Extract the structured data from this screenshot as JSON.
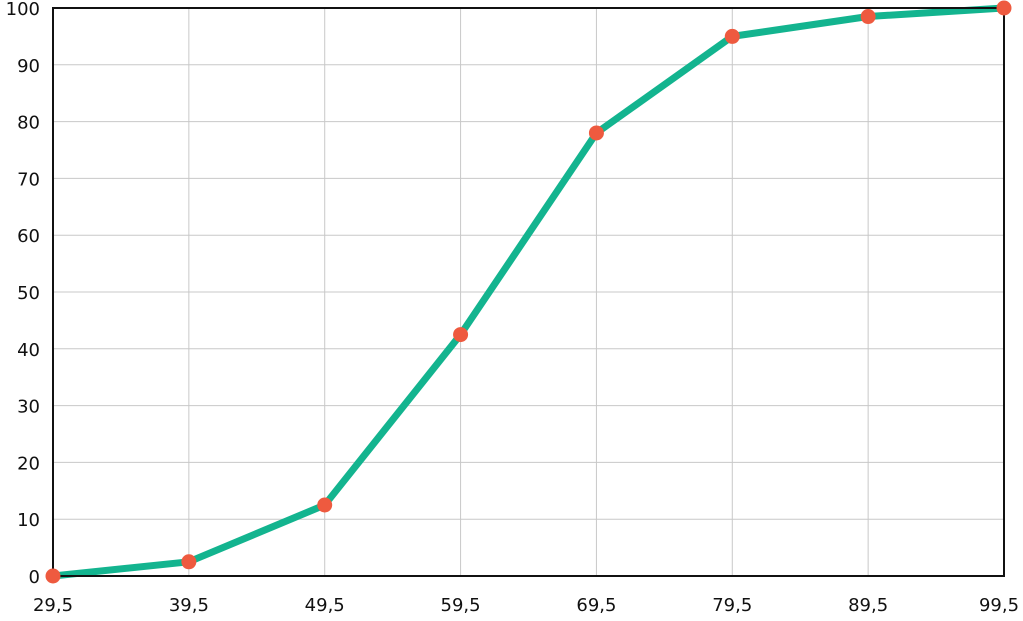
{
  "chart_data": {
    "type": "line",
    "title": "",
    "xlabel": "",
    "ylabel": "",
    "x": [
      29.5,
      39.5,
      49.5,
      59.5,
      69.5,
      79.5,
      89.5,
      99.5
    ],
    "x_tick_labels": [
      "29,5",
      "39,5",
      "49,5",
      "59,5",
      "69,5",
      "79,5",
      "89,5",
      "99,5"
    ],
    "y_ticks": [
      0,
      10,
      20,
      30,
      40,
      50,
      60,
      70,
      80,
      90,
      100
    ],
    "y_tick_labels": [
      "0",
      "10",
      "20",
      "30",
      "40",
      "50",
      "60",
      "70",
      "80",
      "90",
      "100"
    ],
    "xlim": [
      29.5,
      99.5
    ],
    "ylim": [
      0,
      100
    ],
    "grid": true,
    "legend": "none",
    "series": [
      {
        "values": [
          0,
          2.5,
          12.5,
          42.5,
          78,
          95,
          98.5,
          100
        ]
      }
    ],
    "colors": {
      "line": "#13b48f",
      "marker": "#ee5a3f",
      "grid": "#c8c8c8",
      "axis": "#111111"
    }
  }
}
